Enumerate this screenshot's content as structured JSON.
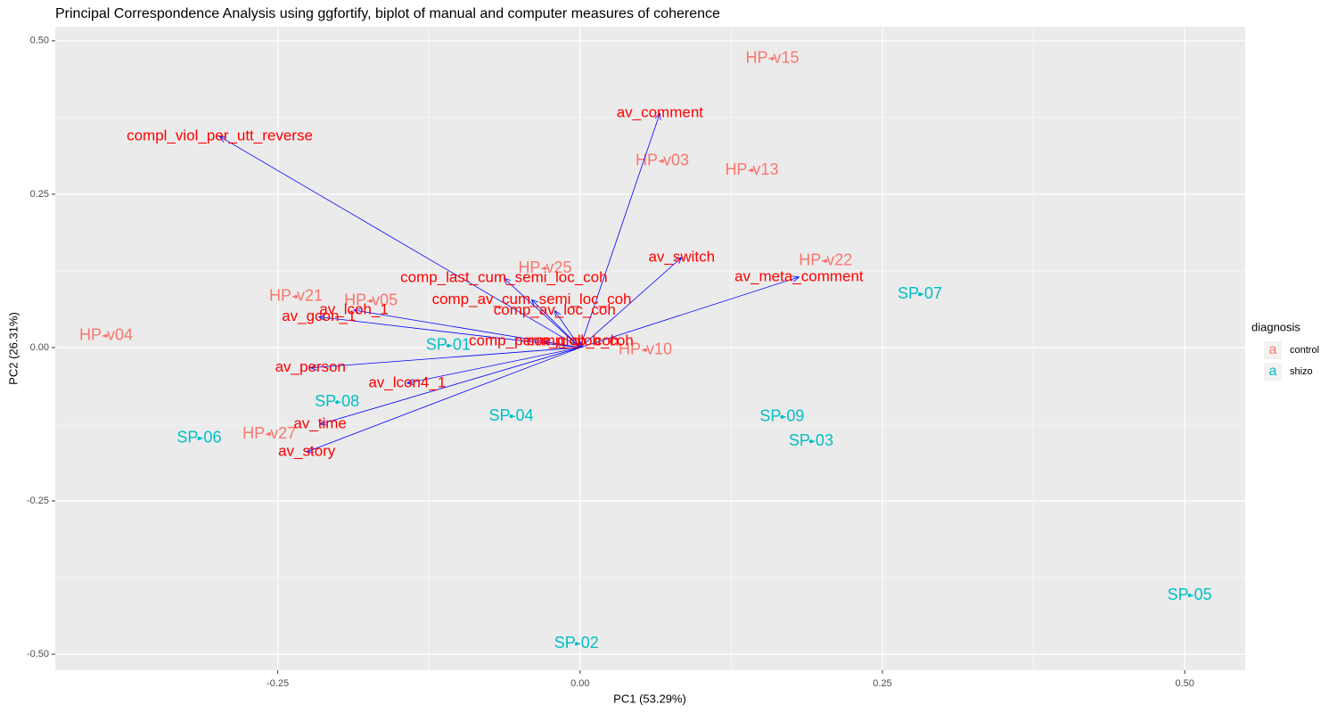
{
  "chart_data": {
    "type": "biplot",
    "title": "Principal Correspondence Analysis using ggfortify, biplot of manual and computer measures of coherence",
    "x_label": "PC1 (53.29%)",
    "y_label": "PC2 (26.31%)",
    "xlim": [
      -0.434,
      0.55
    ],
    "ylim": [
      -0.526,
      0.523
    ],
    "xticks": [
      {
        "value": -0.25,
        "label": "-0.25"
      },
      {
        "value": 0,
        "label": "0.00"
      },
      {
        "value": 0.25,
        "label": "0.25"
      },
      {
        "value": 0.5,
        "label": "0.50"
      }
    ],
    "yticks": [
      {
        "value": -0.5,
        "label": "-0.50"
      },
      {
        "value": -0.25,
        "label": "-0.25"
      },
      {
        "value": 0,
        "label": "0.00"
      },
      {
        "value": 0.25,
        "label": "0.25"
      },
      {
        "value": 0.5,
        "label": "0.50"
      }
    ],
    "grid": true,
    "legend_title": "diagnosis",
    "legend_key": "a",
    "legend_position": "right",
    "series": [
      {
        "name": "control",
        "color": "#F8766D",
        "labels": [
          "HP-v15",
          "HP-v03",
          "HP-v13",
          "HP-v22",
          "HP-v25",
          "HP-v21",
          "HP-v05",
          "HP-v04",
          "HP-v10",
          "HP-v27"
        ],
        "x": [
          0.159,
          0.068,
          0.142,
          0.203,
          -0.029,
          -0.235,
          -0.173,
          -0.392,
          0.054,
          -0.257
        ],
        "values": [
          0.471,
          0.304,
          0.289,
          0.141,
          0.129,
          0.083,
          0.076,
          0.019,
          -0.004,
          -0.141
        ]
      },
      {
        "name": "shizo",
        "color": "#00BFC4",
        "labels": [
          "SP-07",
          "SP-01",
          "SP-08",
          "SP-04",
          "SP-06",
          "SP-09",
          "SP-03",
          "SP-05",
          "SP-02"
        ],
        "x": [
          0.281,
          -0.109,
          -0.201,
          -0.057,
          -0.315,
          0.167,
          0.191,
          0.504,
          -0.003
        ],
        "values": [
          0.087,
          0.003,
          -0.089,
          -0.112,
          -0.148,
          -0.113,
          -0.153,
          -0.404,
          -0.483
        ]
      }
    ],
    "loadings": {
      "color": "#0000FF",
      "label_color": "#FF0000",
      "labels": [
        "compl_viol_per_utt_reverse",
        "av_comment",
        "av_switch",
        "av_meta_comment",
        "comp_last_cum_semi_loc_coh",
        "comp_av_cum_semi_loc_coh",
        "comp_av_loc_coh",
        "av_lcoh_1",
        "av_gcon_1",
        "av_person",
        "av_lcon4_1",
        "av_time",
        "av_story",
        "comp_perm_glob_coh",
        "comp_glob_coh"
      ],
      "x": [
        -0.298,
        0.066,
        0.084,
        0.181,
        -0.063,
        -0.04,
        -0.021,
        -0.187,
        -0.216,
        -0.223,
        -0.143,
        -0.215,
        -0.226,
        -0.03,
        0.0
      ],
      "values": [
        0.344,
        0.382,
        0.147,
        0.115,
        0.113,
        0.078,
        0.06,
        0.061,
        0.05,
        -0.033,
        -0.058,
        -0.125,
        -0.17,
        0.01,
        0.01
      ]
    }
  }
}
